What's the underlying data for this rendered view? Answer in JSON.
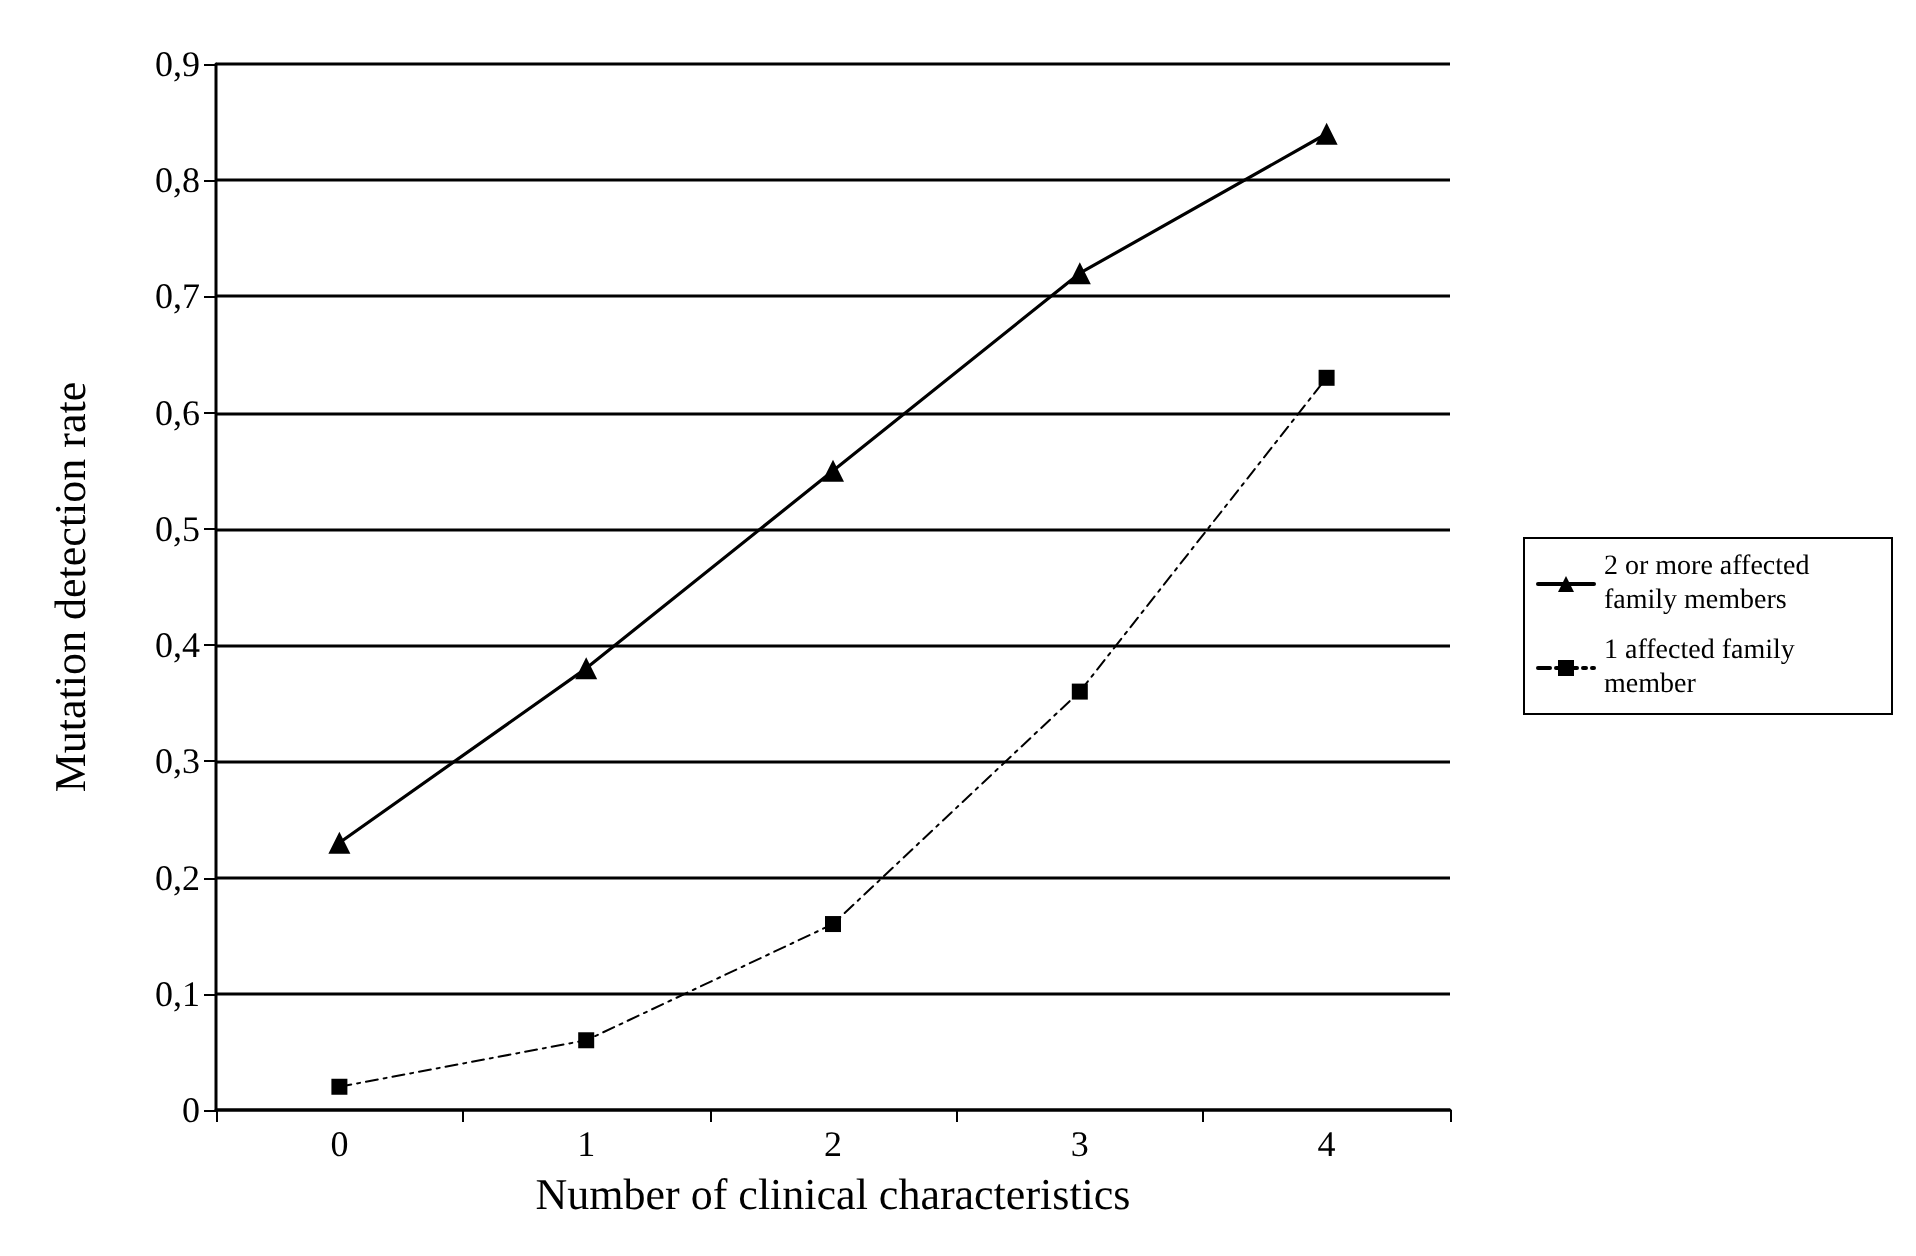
{
  "chart_data": {
    "type": "line",
    "xlabel": "Number of clinical characteristics",
    "ylabel": "Mutation detection rate",
    "categories": [
      "0",
      "1",
      "2",
      "3",
      "4"
    ],
    "series": [
      {
        "name": "2 or more affected family members",
        "color": "#000000",
        "marker": "triangle",
        "line_style": "solid",
        "values": [
          0.23,
          0.38,
          0.55,
          0.72,
          0.84
        ]
      },
      {
        "name": "1 affected family member",
        "color": "#000000",
        "marker": "square",
        "line_style": "dashed",
        "values": [
          0.02,
          0.06,
          0.16,
          0.36,
          0.63
        ]
      }
    ],
    "ylim": [
      0,
      0.9
    ],
    "yticks": [
      0,
      {
        "value": 0.1,
        "label": "0,1"
      },
      {
        "value": 0.2,
        "label": "0,2"
      },
      {
        "value": 0.3,
        "label": "0,3"
      },
      {
        "value": 0.4,
        "label": "0,4"
      },
      {
        "value": 0.5,
        "label": "0,5"
      },
      {
        "value": 0.6,
        "label": "0,6"
      },
      {
        "value": 0.7,
        "label": "0,7"
      },
      {
        "value": 0.8,
        "label": "0,8"
      },
      {
        "value": 0.9,
        "label": "0,9"
      }
    ],
    "grid": "y",
    "legend": "right"
  }
}
